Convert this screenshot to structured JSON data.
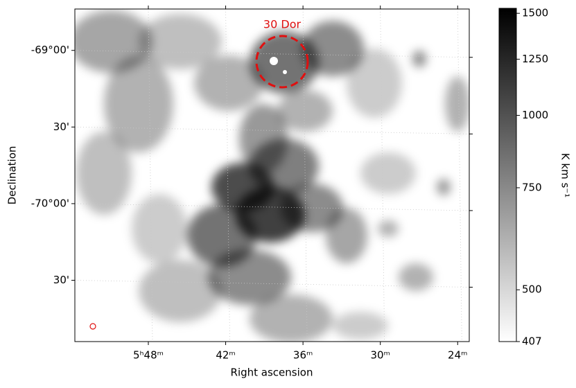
{
  "chart_data": {
    "type": "image",
    "xlabel": "Right ascension",
    "ylabel": "Declination",
    "annotation": "30 Dor",
    "xlim": [
      353.7,
      323.1
    ],
    "xticks": [
      {
        "value": 348,
        "label": "5ʰ48ᵐ"
      },
      {
        "value": 342,
        "label": "42ᵐ"
      },
      {
        "value": 336,
        "label": "36ᵐ"
      },
      {
        "value": 330,
        "label": "30ᵐ"
      },
      {
        "value": 324,
        "label": "24ᵐ"
      }
    ],
    "ylim": [
      -70.9,
      -68.73
    ],
    "yticks": [
      {
        "value": -69,
        "label": "-69°00'"
      },
      {
        "value": -69.5,
        "label": "30'"
      },
      {
        "value": -70,
        "label": "-70°00'"
      },
      {
        "value": -70.5,
        "label": "30'"
      }
    ],
    "grid": true,
    "colorbar": {
      "label": "K km s⁻¹",
      "scale": "log",
      "clim": [
        407,
        1530
      ],
      "ticks": [
        407,
        500,
        750,
        1000,
        1250,
        1500
      ]
    }
  }
}
